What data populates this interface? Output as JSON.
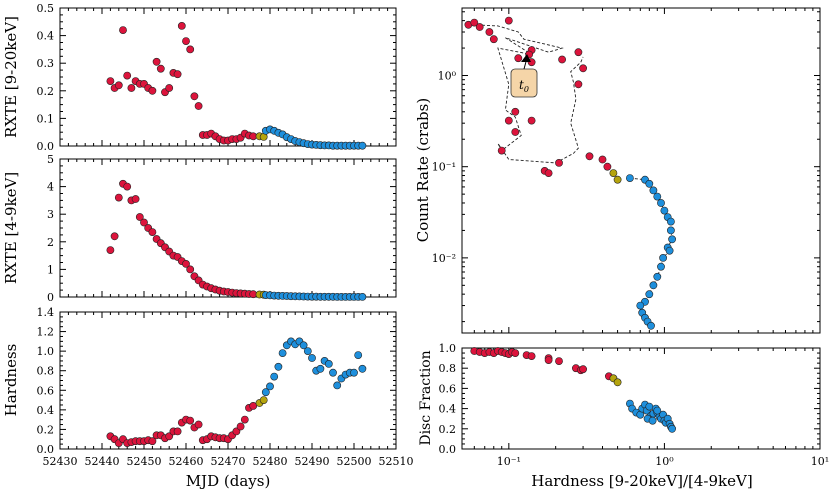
{
  "colors": {
    "hard": "#dc143c",
    "soft": "#1e8fdc",
    "transition": "#b5a40d",
    "callout_fill": "#f5d5a8"
  },
  "chart_data": [
    {
      "type": "scatter",
      "id": "hard-rate",
      "ylabel": "RXTE [9-20keV]",
      "xlim": [
        52430,
        52510
      ],
      "ylim": [
        0,
        0.5
      ],
      "yticks": [
        "0.0",
        "0.1",
        "0.2",
        "0.3",
        "0.4",
        "0.5"
      ],
      "series": [
        {
          "name": "hard",
          "x": [
            52442,
            52443,
            52444,
            52445,
            52446,
            52447,
            52448,
            52449,
            52450,
            52451,
            52452,
            52453,
            52454,
            52455,
            52456,
            52457,
            52458,
            52459,
            52460,
            52461,
            52462,
            52463,
            52464,
            52465,
            52466,
            52467,
            52468,
            52469,
            52470,
            52471,
            52472,
            52473,
            52474,
            52475,
            52476
          ],
          "y": [
            0.235,
            0.21,
            0.22,
            0.42,
            0.255,
            0.21,
            0.235,
            0.225,
            0.225,
            0.21,
            0.2,
            0.305,
            0.28,
            0.195,
            0.21,
            0.265,
            0.26,
            0.435,
            0.38,
            0.35,
            0.18,
            0.145,
            0.04,
            0.04,
            0.045,
            0.035,
            0.025,
            0.02,
            0.02,
            0.025,
            0.025,
            0.03,
            0.045,
            0.038,
            0.035
          ]
        },
        {
          "name": "transition",
          "x": [
            52477.5,
            52478.5
          ],
          "y": [
            0.035,
            0.033
          ]
        },
        {
          "name": "soft",
          "x": [
            52479,
            52480,
            52481,
            52482,
            52483,
            52484,
            52485,
            52486,
            52487,
            52488,
            52489,
            52490,
            52491,
            52492,
            52493,
            52494,
            52495,
            52496,
            52497,
            52498,
            52499,
            52500,
            52501,
            52502
          ],
          "y": [
            0.055,
            0.06,
            0.055,
            0.048,
            0.042,
            0.032,
            0.025,
            0.018,
            0.014,
            0.01,
            0.007,
            0.005,
            0.004,
            0.003,
            0.002,
            0.002,
            0.001,
            0.001,
            0.001,
            0.001,
            0.001,
            0.001,
            0.001,
            0.001
          ]
        }
      ]
    },
    {
      "type": "scatter",
      "id": "soft-rate",
      "ylabel": "RXTE [4-9keV]",
      "xlim": [
        52430,
        52510
      ],
      "ylim": [
        0,
        5
      ],
      "yticks": [
        "0",
        "1",
        "2",
        "3",
        "4",
        "5"
      ],
      "series": [
        {
          "name": "hard",
          "x": [
            52442,
            52443,
            52444,
            52445,
            52446,
            52447,
            52448,
            52449,
            52450,
            52451,
            52452,
            52453,
            52454,
            52455,
            52456,
            52457,
            52458,
            52459,
            52460,
            52461,
            52462,
            52463,
            52464,
            52465,
            52466,
            52467,
            52468,
            52469,
            52470,
            52471,
            52472,
            52473,
            52474,
            52475,
            52476
          ],
          "y": [
            1.7,
            2.2,
            3.6,
            4.1,
            4.0,
            3.5,
            3.55,
            2.9,
            2.7,
            2.5,
            2.35,
            2.1,
            1.95,
            1.8,
            1.65,
            1.5,
            1.45,
            1.3,
            1.2,
            1.0,
            0.75,
            0.6,
            0.45,
            0.38,
            0.32,
            0.27,
            0.23,
            0.2,
            0.18,
            0.16,
            0.14,
            0.13,
            0.12,
            0.11,
            0.1
          ]
        },
        {
          "name": "transition",
          "x": [
            52477.5,
            52478.5
          ],
          "y": [
            0.09,
            0.085
          ]
        },
        {
          "name": "soft",
          "x": [
            52479,
            52480,
            52481,
            52482,
            52483,
            52484,
            52485,
            52486,
            52487,
            52488,
            52489,
            52490,
            52491,
            52492,
            52493,
            52494,
            52495,
            52496,
            52497,
            52498,
            52499,
            52500,
            52501,
            52502
          ],
          "y": [
            0.07,
            0.06,
            0.05,
            0.045,
            0.04,
            0.035,
            0.03,
            0.025,
            0.02,
            0.018,
            0.015,
            0.012,
            0.01,
            0.009,
            0.008,
            0.007,
            0.006,
            0.005,
            0.004,
            0.004,
            0.003,
            0.003,
            0.002,
            0.002
          ]
        }
      ]
    },
    {
      "type": "scatter",
      "id": "hardness-time",
      "ylabel": "Hardness",
      "xlabel": "MJD (days)",
      "xlim": [
        52430,
        52510
      ],
      "ylim": [
        0,
        1.4
      ],
      "yticks": [
        "0.0",
        "0.2",
        "0.4",
        "0.6",
        "0.8",
        "1.0",
        "1.2",
        "1.4"
      ],
      "xticks": [
        "52430",
        "52440",
        "52450",
        "52460",
        "52470",
        "52480",
        "52490",
        "52500",
        "52510"
      ],
      "series": [
        {
          "name": "hard",
          "x": [
            52442,
            52443,
            52444,
            52445,
            52446,
            52447,
            52448,
            52449,
            52450,
            52451,
            52452,
            52453,
            52454,
            52455,
            52456,
            52457,
            52458,
            52459,
            52460,
            52461,
            52462,
            52463,
            52464,
            52465,
            52466,
            52467,
            52468,
            52469,
            52470,
            52471,
            52472,
            52473,
            52474,
            52475,
            52476
          ],
          "y": [
            0.13,
            0.1,
            0.06,
            0.1,
            0.06,
            0.07,
            0.08,
            0.08,
            0.08,
            0.09,
            0.08,
            0.14,
            0.14,
            0.11,
            0.13,
            0.18,
            0.18,
            0.27,
            0.3,
            0.29,
            0.22,
            0.25,
            0.09,
            0.1,
            0.13,
            0.12,
            0.11,
            0.11,
            0.1,
            0.14,
            0.18,
            0.23,
            0.3,
            0.42,
            0.44
          ]
        },
        {
          "name": "transition",
          "x": [
            52477.5,
            52478.5
          ],
          "y": [
            0.47,
            0.5
          ]
        },
        {
          "name": "soft",
          "x": [
            52479,
            52480,
            52481,
            52482,
            52483,
            52484,
            52485,
            52486,
            52487,
            52488,
            52489,
            52490,
            52491,
            52492,
            52493,
            52494,
            52495,
            52496,
            52497,
            52498,
            52499,
            52500,
            52501,
            52502
          ],
          "y": [
            0.58,
            0.64,
            0.74,
            0.84,
            0.98,
            1.06,
            1.1,
            1.07,
            1.1,
            1.06,
            1.0,
            0.93,
            0.8,
            0.82,
            0.9,
            0.87,
            0.78,
            0.65,
            0.72,
            0.76,
            0.78,
            0.78,
            0.96,
            0.82
          ]
        }
      ]
    },
    {
      "type": "scatter",
      "id": "hid",
      "ylabel": "Count Rate (crabs)",
      "xscale": "log",
      "yscale": "log",
      "xlim": [
        0.05,
        10
      ],
      "ylim": [
        0.0015,
        5.5
      ],
      "yticks": [
        "10⁻²",
        "10⁻¹",
        "10⁰"
      ],
      "annotation": {
        "text": "t",
        "subscript": "0"
      },
      "path": {
        "x": [
          0.058,
          0.085,
          0.115,
          0.125,
          0.22,
          0.18,
          0.095,
          0.14,
          0.085,
          0.1,
          0.095,
          0.11,
          0.12,
          0.09,
          0.085,
          0.1,
          0.2,
          0.26,
          0.28,
          0.25,
          0.27,
          0.26,
          0.25,
          0.29,
          0.3
        ],
        "y": [
          3.6,
          3.5,
          3.0,
          2.5,
          2.0,
          1.8,
          2.6,
          1.7,
          2.0,
          0.8,
          0.42,
          0.35,
          0.22,
          0.15,
          0.18,
          0.12,
          0.11,
          0.14,
          0.16,
          0.3,
          0.55,
          0.85,
          1.1,
          1.4,
          1.6
        ]
      },
      "series": [
        {
          "name": "hard",
          "x": [
            0.055,
            0.06,
            0.065,
            0.075,
            0.08,
            0.1,
            0.14,
            0.135,
            0.115,
            0.14,
            0.22,
            0.12,
            0.11,
            0.11,
            0.1,
            0.09,
            0.14,
            0.13,
            0.28,
            0.3,
            0.28,
            0.33,
            0.21,
            0.17,
            0.18,
            0.43,
            0.4
          ],
          "y": [
            3.6,
            3.8,
            3.4,
            3.0,
            2.5,
            4.0,
            1.9,
            1.7,
            1.55,
            1.4,
            1.5,
            0.95,
            0.4,
            0.24,
            0.32,
            0.15,
            0.32,
            0.65,
            1.8,
            1.2,
            0.8,
            0.13,
            0.11,
            0.09,
            0.085,
            0.1,
            0.12
          ]
        },
        {
          "name": "transition",
          "x": [
            0.47,
            0.5
          ],
          "y": [
            0.085,
            0.072
          ]
        },
        {
          "name": "soft",
          "x": [
            0.6,
            0.75,
            0.8,
            0.85,
            0.9,
            0.95,
            1.0,
            1.05,
            1.1,
            1.1,
            1.12,
            1.05,
            1.08,
            0.98,
            0.95,
            0.9,
            0.85,
            0.8,
            0.75,
            0.7,
            0.72,
            0.75,
            0.78,
            0.82
          ],
          "y": [
            0.075,
            0.072,
            0.065,
            0.055,
            0.047,
            0.04,
            0.033,
            0.028,
            0.025,
            0.02,
            0.016,
            0.013,
            0.012,
            0.01,
            0.008,
            0.0062,
            0.005,
            0.004,
            0.0033,
            0.003,
            0.0025,
            0.0022,
            0.002,
            0.0018
          ]
        }
      ]
    },
    {
      "type": "scatter",
      "id": "disc-fraction",
      "ylabel": "Disc Fraction",
      "xlabel": "Hardness [9-20keV]/[4-9keV]",
      "xscale": "log",
      "xlim": [
        0.05,
        10
      ],
      "ylim": [
        0,
        1.0
      ],
      "yticks": [
        "0.0",
        "0.2",
        "0.4",
        "0.6",
        "0.8",
        "1.0"
      ],
      "xticks": [
        "10⁻¹",
        "10⁰",
        "10¹"
      ],
      "series": [
        {
          "name": "hard",
          "x": [
            0.06,
            0.065,
            0.07,
            0.075,
            0.08,
            0.085,
            0.09,
            0.095,
            0.1,
            0.105,
            0.11,
            0.13,
            0.14,
            0.18,
            0.18,
            0.21,
            0.27,
            0.29,
            0.3,
            0.44
          ],
          "y": [
            0.97,
            0.96,
            0.95,
            0.96,
            0.95,
            0.97,
            0.96,
            0.95,
            0.94,
            0.96,
            0.95,
            0.93,
            0.92,
            0.9,
            0.88,
            0.87,
            0.8,
            0.78,
            0.79,
            0.72
          ]
        },
        {
          "name": "transition",
          "x": [
            0.47,
            0.5
          ],
          "y": [
            0.7,
            0.66
          ]
        },
        {
          "name": "soft",
          "x": [
            0.6,
            0.62,
            0.66,
            0.7,
            0.72,
            0.75,
            0.77,
            0.8,
            0.82,
            0.85,
            0.88,
            0.9,
            0.93,
            0.95,
            0.98,
            1.0,
            1.02,
            1.05,
            1.08,
            1.1,
            1.12,
            0.78,
            0.84,
            0.9
          ],
          "y": [
            0.45,
            0.4,
            0.36,
            0.34,
            0.4,
            0.44,
            0.38,
            0.42,
            0.33,
            0.35,
            0.4,
            0.36,
            0.32,
            0.3,
            0.34,
            0.28,
            0.26,
            0.3,
            0.25,
            0.22,
            0.2,
            0.3,
            0.28,
            0.38
          ]
        }
      ]
    }
  ]
}
